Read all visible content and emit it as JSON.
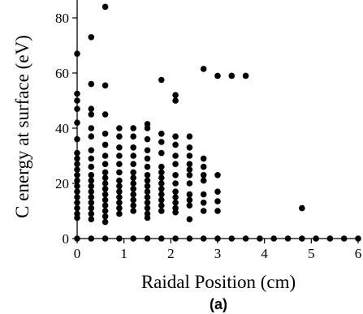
{
  "chart_data": {
    "type": "scatter",
    "panel_label": "(a)",
    "xlabel": "Raidal Position (cm)",
    "ylabel": "C energy at surface (eV)",
    "xlim": [
      0,
      6
    ],
    "ylim": [
      0,
      85
    ],
    "xticks": [
      "0",
      "1",
      "2",
      "3",
      "4",
      "5",
      "6"
    ],
    "yticks": [
      "0",
      "20",
      "40",
      "60",
      "80"
    ],
    "xtick_values": [
      0,
      1,
      2,
      3,
      4,
      5,
      6
    ],
    "ytick_values": [
      0,
      20,
      40,
      60,
      80
    ],
    "grid": false,
    "legend": false,
    "marker_color": "#000000",
    "series": [
      {
        "points": [
          [
            0,
            0
          ],
          [
            0.3,
            0
          ],
          [
            0.6,
            0
          ],
          [
            0.9,
            0
          ],
          [
            1.2,
            0
          ],
          [
            1.5,
            0
          ],
          [
            1.8,
            0
          ],
          [
            2.1,
            0
          ],
          [
            2.4,
            0
          ],
          [
            2.7,
            0
          ],
          [
            3.0,
            0
          ],
          [
            3.3,
            0
          ],
          [
            3.6,
            0
          ],
          [
            3.9,
            0
          ],
          [
            4.2,
            0
          ],
          [
            4.5,
            0
          ],
          [
            4.8,
            0
          ],
          [
            5.1,
            0
          ],
          [
            5.4,
            0
          ],
          [
            5.7,
            0
          ],
          [
            6.0,
            0
          ],
          [
            0,
            67
          ],
          [
            0,
            52.5
          ],
          [
            0,
            50
          ],
          [
            0,
            47
          ],
          [
            0,
            42
          ],
          [
            0,
            36
          ],
          [
            0,
            31
          ],
          [
            0,
            29
          ],
          [
            0,
            27
          ],
          [
            0,
            25
          ],
          [
            0,
            23
          ],
          [
            0,
            21
          ],
          [
            0,
            19
          ],
          [
            0,
            17
          ],
          [
            0,
            15
          ],
          [
            0,
            13
          ],
          [
            0,
            11
          ],
          [
            0,
            9
          ],
          [
            0,
            7.5
          ],
          [
            0.3,
            73
          ],
          [
            0.3,
            56
          ],
          [
            0.3,
            47
          ],
          [
            0.3,
            45
          ],
          [
            0.3,
            40
          ],
          [
            0.3,
            37
          ],
          [
            0.3,
            32
          ],
          [
            0.3,
            29
          ],
          [
            0.3,
            26
          ],
          [
            0.3,
            23
          ],
          [
            0.3,
            21
          ],
          [
            0.3,
            19
          ],
          [
            0.3,
            17
          ],
          [
            0.3,
            15
          ],
          [
            0.3,
            13
          ],
          [
            0.3,
            11
          ],
          [
            0.3,
            9
          ],
          [
            0.3,
            7
          ],
          [
            0.6,
            84
          ],
          [
            0.6,
            55.5
          ],
          [
            0.6,
            45
          ],
          [
            0.6,
            38
          ],
          [
            0.6,
            34
          ],
          [
            0.6,
            30
          ],
          [
            0.6,
            27
          ],
          [
            0.6,
            24
          ],
          [
            0.6,
            22
          ],
          [
            0.6,
            20
          ],
          [
            0.6,
            18
          ],
          [
            0.6,
            16
          ],
          [
            0.6,
            14
          ],
          [
            0.6,
            12
          ],
          [
            0.6,
            10
          ],
          [
            0.6,
            8
          ],
          [
            0.6,
            6
          ],
          [
            0.9,
            40
          ],
          [
            0.9,
            37
          ],
          [
            0.9,
            33
          ],
          [
            0.9,
            30
          ],
          [
            0.9,
            27
          ],
          [
            0.9,
            24
          ],
          [
            0.9,
            21
          ],
          [
            0.9,
            19
          ],
          [
            0.9,
            17
          ],
          [
            0.9,
            15
          ],
          [
            0.9,
            13
          ],
          [
            0.9,
            11
          ],
          [
            0.9,
            9
          ],
          [
            1.2,
            40
          ],
          [
            1.2,
            37
          ],
          [
            1.2,
            33
          ],
          [
            1.2,
            30
          ],
          [
            1.2,
            27
          ],
          [
            1.2,
            24
          ],
          [
            1.2,
            22
          ],
          [
            1.2,
            20
          ],
          [
            1.2,
            18
          ],
          [
            1.2,
            16
          ],
          [
            1.2,
            14
          ],
          [
            1.2,
            12
          ],
          [
            1.2,
            10
          ],
          [
            1.5,
            41.5
          ],
          [
            1.5,
            40
          ],
          [
            1.5,
            36
          ],
          [
            1.5,
            32
          ],
          [
            1.5,
            29
          ],
          [
            1.5,
            26
          ],
          [
            1.5,
            23
          ],
          [
            1.5,
            21
          ],
          [
            1.5,
            19
          ],
          [
            1.5,
            17
          ],
          [
            1.5,
            15
          ],
          [
            1.5,
            13
          ],
          [
            1.5,
            11
          ],
          [
            1.5,
            9
          ],
          [
            1.5,
            7.5
          ],
          [
            1.8,
            57.5
          ],
          [
            1.8,
            38
          ],
          [
            1.8,
            35
          ],
          [
            1.8,
            31
          ],
          [
            1.8,
            26
          ],
          [
            1.8,
            24
          ],
          [
            1.8,
            22
          ],
          [
            1.8,
            20
          ],
          [
            1.8,
            18
          ],
          [
            1.8,
            16
          ],
          [
            1.8,
            14
          ],
          [
            1.8,
            12
          ],
          [
            1.8,
            10
          ],
          [
            2.1,
            52
          ],
          [
            2.1,
            50
          ],
          [
            2.1,
            37
          ],
          [
            2.1,
            34
          ],
          [
            2.1,
            30
          ],
          [
            2.1,
            27
          ],
          [
            2.1,
            23
          ],
          [
            2.1,
            20
          ],
          [
            2.1,
            17
          ],
          [
            2.1,
            15
          ],
          [
            2.1,
            13
          ],
          [
            2.1,
            11
          ],
          [
            2.1,
            9.5
          ],
          [
            2.4,
            37
          ],
          [
            2.4,
            33
          ],
          [
            2.4,
            30
          ],
          [
            2.4,
            27
          ],
          [
            2.4,
            25
          ],
          [
            2.4,
            23
          ],
          [
            2.4,
            20
          ],
          [
            2.4,
            16
          ],
          [
            2.4,
            14
          ],
          [
            2.4,
            12
          ],
          [
            2.4,
            7
          ],
          [
            2.7,
            61.5
          ],
          [
            2.7,
            29
          ],
          [
            2.7,
            26
          ],
          [
            2.7,
            23
          ],
          [
            2.7,
            21
          ],
          [
            2.7,
            16
          ],
          [
            2.7,
            13
          ],
          [
            2.7,
            10
          ],
          [
            3.0,
            59
          ],
          [
            3.0,
            23
          ],
          [
            3.0,
            17
          ],
          [
            3.0,
            13.5
          ],
          [
            3.0,
            10
          ],
          [
            3.3,
            59
          ],
          [
            3.6,
            59
          ],
          [
            4.8,
            11
          ]
        ]
      }
    ]
  }
}
